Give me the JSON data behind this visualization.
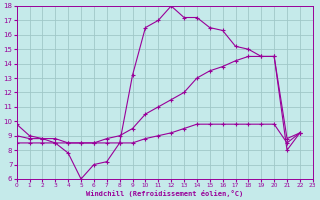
{
  "xlabel": "Windchill (Refroidissement éolien,°C)",
  "xlim": [
    0,
    23
  ],
  "ylim": [
    6,
    18
  ],
  "xticks": [
    0,
    1,
    2,
    3,
    4,
    5,
    6,
    7,
    8,
    9,
    10,
    11,
    12,
    13,
    14,
    15,
    16,
    17,
    18,
    19,
    20,
    21,
    22,
    23
  ],
  "yticks": [
    6,
    7,
    8,
    9,
    10,
    11,
    12,
    13,
    14,
    15,
    16,
    17,
    18
  ],
  "bg_color": "#c5eaea",
  "line_color": "#990099",
  "grid_color": "#a0c8c8",
  "series1_x": [
    0,
    1,
    2,
    3,
    4,
    5,
    6,
    7,
    8,
    9,
    10,
    11,
    12,
    13,
    14,
    15,
    16,
    17,
    18,
    19,
    20,
    21,
    22
  ],
  "series1_y": [
    9.8,
    9.0,
    8.8,
    8.5,
    7.8,
    6.0,
    7.0,
    7.2,
    8.5,
    13.2,
    16.5,
    17.0,
    18.0,
    17.2,
    17.2,
    16.5,
    16.3,
    15.2,
    15.0,
    14.5,
    14.5,
    8.0,
    9.2
  ],
  "series2_x": [
    0,
    1,
    2,
    3,
    4,
    5,
    6,
    7,
    8,
    9,
    10,
    11,
    12,
    13,
    14,
    15,
    16,
    17,
    18,
    19,
    20,
    21,
    22
  ],
  "series2_y": [
    9.0,
    8.8,
    8.8,
    8.8,
    8.5,
    8.5,
    8.5,
    8.8,
    9.0,
    9.5,
    10.5,
    11.0,
    11.5,
    12.0,
    13.0,
    13.5,
    13.8,
    14.2,
    14.5,
    14.5,
    14.5,
    8.8,
    9.2
  ],
  "series3_x": [
    0,
    1,
    2,
    3,
    4,
    5,
    6,
    7,
    8,
    9,
    10,
    11,
    12,
    13,
    14,
    15,
    16,
    17,
    18,
    19,
    20,
    21,
    22
  ],
  "series3_y": [
    8.5,
    8.5,
    8.5,
    8.5,
    8.5,
    8.5,
    8.5,
    8.5,
    8.5,
    8.5,
    8.8,
    9.0,
    9.2,
    9.5,
    9.8,
    9.8,
    9.8,
    9.8,
    9.8,
    9.8,
    9.8,
    8.5,
    9.2
  ]
}
